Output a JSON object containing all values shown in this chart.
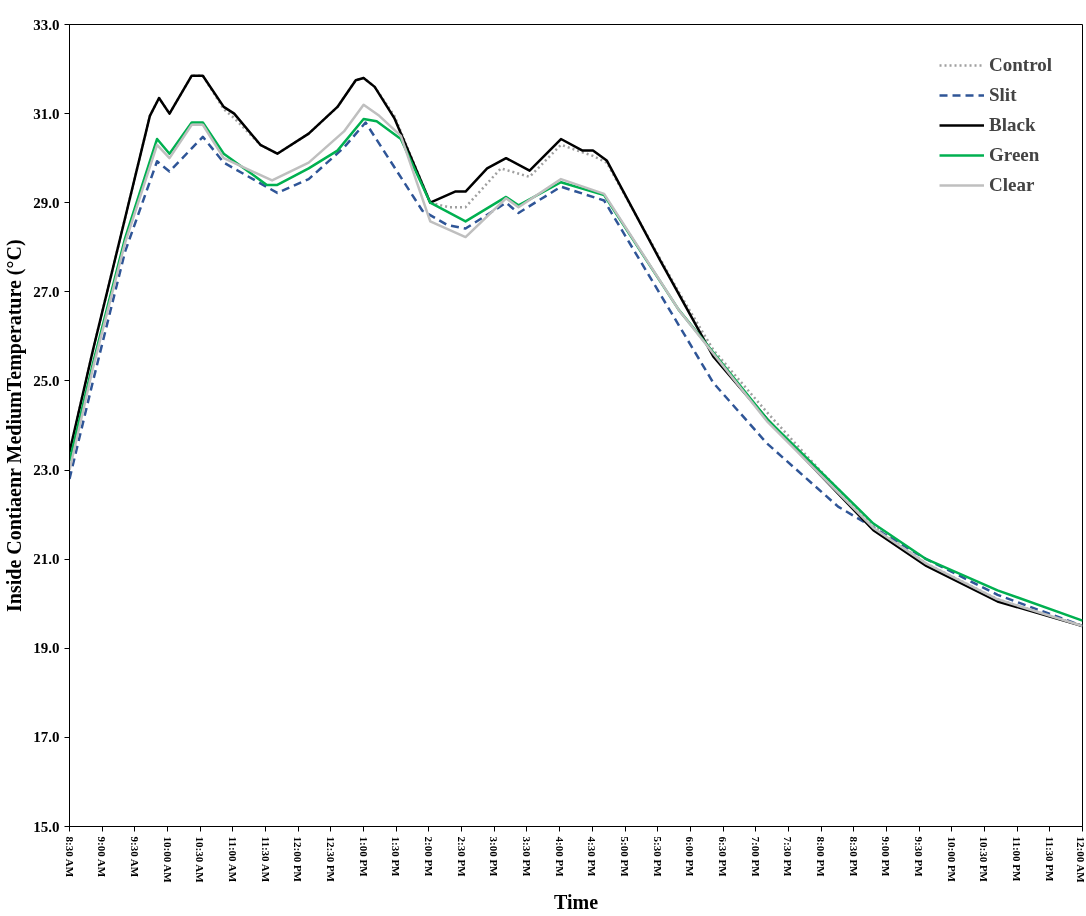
{
  "chart_data": {
    "type": "line",
    "xlabel": "Time",
    "ylabel": "Inside Contiaenr MediumTemperature (°C)",
    "xlim": [
      8.5,
      24
    ],
    "ylim": [
      15,
      33
    ],
    "xticks": [
      {
        "value": 8.5,
        "label": "8:30 AM"
      },
      {
        "value": 9,
        "label": "9:00 AM"
      },
      {
        "value": 9.5,
        "label": "9:30 AM"
      },
      {
        "value": 10,
        "label": "10:00 AM"
      },
      {
        "value": 10.5,
        "label": "10:30 AM"
      },
      {
        "value": 11,
        "label": "11:00 AM"
      },
      {
        "value": 11.5,
        "label": "11:30 AM"
      },
      {
        "value": 12,
        "label": "12:00 PM"
      },
      {
        "value": 12.5,
        "label": "12:30 PM"
      },
      {
        "value": 13,
        "label": "1:00 PM"
      },
      {
        "value": 13.5,
        "label": "1:30 PM"
      },
      {
        "value": 14,
        "label": "2:00 PM"
      },
      {
        "value": 14.5,
        "label": "2:30 PM"
      },
      {
        "value": 15,
        "label": "3:00 PM"
      },
      {
        "value": 15.5,
        "label": "3:30 PM"
      },
      {
        "value": 16,
        "label": "4:00 PM"
      },
      {
        "value": 16.5,
        "label": "4:30 PM"
      },
      {
        "value": 17,
        "label": "5:00 PM"
      },
      {
        "value": 17.5,
        "label": "5:30 PM"
      },
      {
        "value": 18,
        "label": "6:00 PM"
      },
      {
        "value": 18.5,
        "label": "6:30 PM"
      },
      {
        "value": 19,
        "label": "7:00 PM"
      },
      {
        "value": 19.5,
        "label": "7:30 PM"
      },
      {
        "value": 20,
        "label": "8:00 PM"
      },
      {
        "value": 20.5,
        "label": "8:30 PM"
      },
      {
        "value": 21,
        "label": "9:00 PM"
      },
      {
        "value": 21.5,
        "label": "9:30 PM"
      },
      {
        "value": 22,
        "label": "10:00 PM"
      },
      {
        "value": 22.5,
        "label": "10:30 PM"
      },
      {
        "value": 23,
        "label": "11:00 PM"
      },
      {
        "value": 23.5,
        "label": "11:30 PM"
      },
      {
        "value": 24,
        "label": "12:00 AM"
      }
    ],
    "yticks": [
      {
        "value": 15,
        "label": "15.0"
      },
      {
        "value": 17,
        "label": "17.0"
      },
      {
        "value": 19,
        "label": "19.0"
      },
      {
        "value": 21,
        "label": "21.0"
      },
      {
        "value": 23,
        "label": "23.0"
      },
      {
        "value": 25,
        "label": "25.0"
      },
      {
        "value": 27,
        "label": "27.0"
      },
      {
        "value": 29,
        "label": "29.0"
      },
      {
        "value": 31,
        "label": "31.0"
      },
      {
        "value": 33,
        "label": "33.0"
      }
    ],
    "grid": false,
    "legend": "top right",
    "marker": "none",
    "series": [
      {
        "name": "Control",
        "color": "#a0a0a0",
        "line_style": "dotted",
        "x": [
          8.5,
          8.86,
          9.35,
          9.73,
          9.87,
          10.03,
          10.37,
          10.54,
          10.86,
          11.02,
          11.42,
          11.68,
          12.16,
          12.6,
          12.88,
          13.0,
          13.17,
          13.47,
          14.02,
          14.3,
          14.56,
          15.1,
          15.54,
          16.02,
          16.51,
          16.72,
          17.82,
          18.35,
          19.17,
          19.98,
          20.8,
          21.61,
          22.7,
          24
        ],
        "values": [
          23.4,
          25.7,
          28.65,
          30.95,
          31.35,
          31.0,
          31.85,
          31.85,
          31.1,
          30.9,
          30.3,
          30.1,
          30.55,
          31.15,
          31.75,
          31.8,
          31.6,
          30.95,
          29.0,
          28.9,
          28.9,
          29.77,
          29.58,
          30.3,
          30.05,
          29.9,
          27.0,
          25.7,
          24.3,
          23.0,
          21.75,
          20.9,
          20.1,
          19.5
        ]
      },
      {
        "name": "Slit",
        "color": "#2f5597",
        "line_style": "dashed",
        "x": [
          8.5,
          8.86,
          9.35,
          9.84,
          10.03,
          10.54,
          10.86,
          11.68,
          12.16,
          12.7,
          13.03,
          13.9,
          14.28,
          14.56,
          15.18,
          15.37,
          16.02,
          16.68,
          17.77,
          18.35,
          19.17,
          20.26,
          21.61,
          22.7,
          24
        ],
        "values": [
          22.8,
          25.0,
          27.9,
          29.93,
          29.7,
          30.48,
          29.9,
          29.22,
          29.53,
          30.24,
          30.8,
          28.82,
          28.5,
          28.42,
          29.0,
          28.77,
          29.36,
          29.05,
          26.38,
          24.96,
          23.6,
          22.18,
          21.0,
          20.2,
          19.5
        ]
      },
      {
        "name": "Black",
        "color": "#000000",
        "line_style": "solid",
        "x": [
          8.5,
          8.86,
          9.35,
          9.73,
          9.87,
          10.03,
          10.37,
          10.54,
          10.86,
          11.02,
          11.42,
          11.68,
          12.16,
          12.6,
          12.88,
          13.0,
          13.17,
          13.47,
          14.02,
          14.4,
          14.56,
          14.89,
          15.18,
          15.54,
          16.02,
          16.35,
          16.51,
          16.72,
          17.54,
          18.35,
          19.17,
          19.98,
          20.8,
          21.61,
          22.7,
          24
        ],
        "values": [
          23.4,
          25.7,
          28.65,
          30.95,
          31.35,
          31.0,
          31.85,
          31.85,
          31.15,
          31.0,
          30.3,
          30.1,
          30.55,
          31.15,
          31.75,
          31.8,
          31.6,
          30.9,
          29.0,
          29.25,
          29.25,
          29.77,
          30.0,
          29.72,
          30.43,
          30.17,
          30.17,
          29.95,
          27.7,
          25.55,
          24.15,
          22.9,
          21.65,
          20.85,
          20.05,
          19.5
        ]
      },
      {
        "name": "Green",
        "color": "#00b050",
        "line_style": "solid",
        "x": [
          8.5,
          8.86,
          9.35,
          9.84,
          10.03,
          10.37,
          10.54,
          10.86,
          11.52,
          11.68,
          12.16,
          12.6,
          13.0,
          13.2,
          13.57,
          14.02,
          14.56,
          15.18,
          15.37,
          16.02,
          16.68,
          17.82,
          19.17,
          20.8,
          21.61,
          22.7,
          24
        ],
        "values": [
          23.2,
          25.4,
          28.2,
          30.43,
          30.1,
          30.8,
          30.8,
          30.1,
          29.4,
          29.4,
          29.77,
          30.17,
          30.88,
          30.83,
          30.43,
          29.0,
          28.58,
          29.13,
          28.94,
          29.46,
          29.17,
          26.6,
          24.15,
          21.8,
          21.0,
          20.3,
          19.62
        ]
      },
      {
        "name": "Clear",
        "color": "#bfbfbf",
        "line_style": "solid",
        "x": [
          8.5,
          8.86,
          9.35,
          9.84,
          10.03,
          10.37,
          10.54,
          10.86,
          11.6,
          12.16,
          12.7,
          13.0,
          13.24,
          13.57,
          14.02,
          14.56,
          15.18,
          15.37,
          16.02,
          16.68,
          17.82,
          19.17,
          20.8,
          21.61,
          22.7,
          24
        ],
        "values": [
          23.0,
          25.3,
          28.1,
          30.3,
          30.0,
          30.75,
          30.75,
          30.0,
          29.5,
          29.9,
          30.6,
          31.2,
          30.95,
          30.5,
          28.58,
          28.23,
          29.1,
          28.9,
          29.53,
          29.2,
          26.6,
          24.1,
          21.7,
          20.9,
          20.1,
          19.5
        ]
      }
    ]
  }
}
